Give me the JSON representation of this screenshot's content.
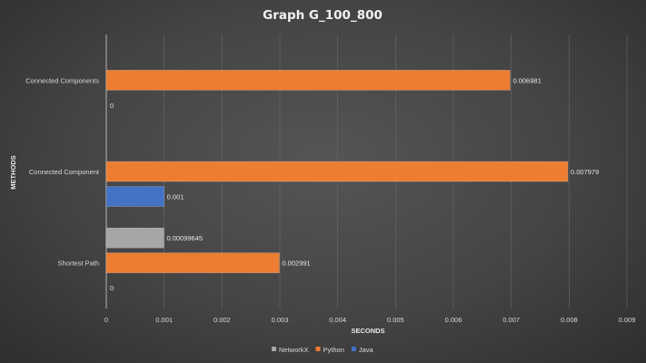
{
  "chart_data": {
    "type": "bar",
    "orientation": "horizontal",
    "title": "Graph G_100_800",
    "xlabel": "SECONDS",
    "ylabel": "METHODS",
    "xlim": [
      0,
      0.009
    ],
    "xticks": [
      "0",
      "0.001",
      "0.002",
      "0.003",
      "0.004",
      "0.005",
      "0.006",
      "0.007",
      "0.008",
      "0.009"
    ],
    "grid": true,
    "legend_position": "bottom",
    "categories": [
      "Connected Components",
      "Connected Component",
      "Shortest Path"
    ],
    "series": [
      {
        "name": "NetworkX",
        "color": "#a6a6a6",
        "values": [
          null,
          null,
          0.00099645
        ],
        "labels": [
          "",
          "",
          "0.00099645"
        ]
      },
      {
        "name": "Python",
        "color": "#ed7d31",
        "values": [
          0.006981,
          0.007979,
          0.002991
        ],
        "labels": [
          "0.006981",
          "0.007979",
          "0.002991"
        ]
      },
      {
        "name": "Java",
        "color": "#4472c4",
        "values": [
          0,
          0.001,
          0
        ],
        "labels": [
          "0",
          "0.001",
          "0"
        ]
      }
    ]
  }
}
